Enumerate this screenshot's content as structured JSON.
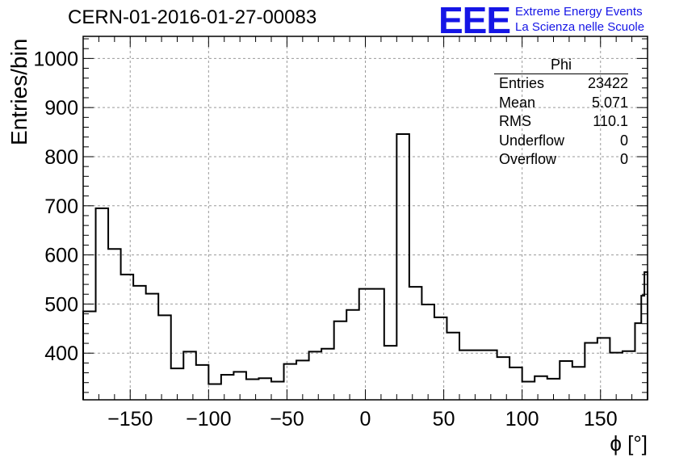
{
  "header": {
    "title": "CERN-01-2016-01-27-00083",
    "logo": "EEE",
    "logo_line1": "Extreme Energy Events",
    "logo_line2": "La Scienza nelle Scuole"
  },
  "stats_box": {
    "name": "Phi",
    "rows": [
      {
        "label": "Entries",
        "value": "23422"
      },
      {
        "label": "Mean",
        "value": "5.071"
      },
      {
        "label": "RMS",
        "value": "110.1"
      },
      {
        "label": "Underflow",
        "value": "0"
      },
      {
        "label": "Overflow",
        "value": "0"
      }
    ]
  },
  "chart_data": {
    "type": "histogram",
    "title": "CERN-01-2016-01-27-00083",
    "xlabel": "ϕ [°]",
    "ylabel": "Entries/bin",
    "xlim": [
      -180,
      180
    ],
    "ylim": [
      305,
      1045
    ],
    "bin_width": 8,
    "x_ticks": [
      -150,
      -100,
      -50,
      0,
      50,
      100,
      150
    ],
    "y_ticks": [
      400,
      500,
      600,
      700,
      800,
      900,
      1000
    ],
    "grid": true,
    "line_color": "#000000",
    "bins": [
      {
        "x0": -180,
        "x1": -172,
        "y": 485
      },
      {
        "x0": -172,
        "x1": -164,
        "y": 695
      },
      {
        "x0": -164,
        "x1": -156,
        "y": 612
      },
      {
        "x0": -156,
        "x1": -148,
        "y": 560
      },
      {
        "x0": -148,
        "x1": -140,
        "y": 537
      },
      {
        "x0": -140,
        "x1": -132,
        "y": 521
      },
      {
        "x0": -132,
        "x1": -124,
        "y": 477
      },
      {
        "x0": -124,
        "x1": -116,
        "y": 369
      },
      {
        "x0": -116,
        "x1": -108,
        "y": 403
      },
      {
        "x0": -108,
        "x1": -100,
        "y": 376
      },
      {
        "x0": -100,
        "x1": -92,
        "y": 337
      },
      {
        "x0": -92,
        "x1": -84,
        "y": 356
      },
      {
        "x0": -84,
        "x1": -76,
        "y": 362
      },
      {
        "x0": -76,
        "x1": -68,
        "y": 347
      },
      {
        "x0": -68,
        "x1": -60,
        "y": 349
      },
      {
        "x0": -60,
        "x1": -52,
        "y": 342
      },
      {
        "x0": -52,
        "x1": -44,
        "y": 378
      },
      {
        "x0": -44,
        "x1": -36,
        "y": 385
      },
      {
        "x0": -36,
        "x1": -28,
        "y": 403
      },
      {
        "x0": -28,
        "x1": -20,
        "y": 409
      },
      {
        "x0": -20,
        "x1": -12,
        "y": 465
      },
      {
        "x0": -12,
        "x1": -4,
        "y": 488
      },
      {
        "x0": -4,
        "x1": 4,
        "y": 531
      },
      {
        "x0": 4,
        "x1": 12,
        "y": 531
      },
      {
        "x0": 12,
        "x1": 20,
        "y": 415
      },
      {
        "x0": 20,
        "x1": 28,
        "y": 846
      },
      {
        "x0": 28,
        "x1": 36,
        "y": 535
      },
      {
        "x0": 36,
        "x1": 44,
        "y": 499
      },
      {
        "x0": 44,
        "x1": 52,
        "y": 473
      },
      {
        "x0": 52,
        "x1": 60,
        "y": 442
      },
      {
        "x0": 60,
        "x1": 68,
        "y": 406
      },
      {
        "x0": 68,
        "x1": 76,
        "y": 406
      },
      {
        "x0": 76,
        "x1": 84,
        "y": 406
      },
      {
        "x0": 84,
        "x1": 92,
        "y": 392
      },
      {
        "x0": 92,
        "x1": 100,
        "y": 371
      },
      {
        "x0": 100,
        "x1": 108,
        "y": 342
      },
      {
        "x0": 108,
        "x1": 116,
        "y": 353
      },
      {
        "x0": 116,
        "x1": 124,
        "y": 348
      },
      {
        "x0": 124,
        "x1": 132,
        "y": 384
      },
      {
        "x0": 132,
        "x1": 140,
        "y": 372
      },
      {
        "x0": 140,
        "x1": 148,
        "y": 421
      },
      {
        "x0": 148,
        "x1": 156,
        "y": 431
      },
      {
        "x0": 156,
        "x1": 164,
        "y": 401
      },
      {
        "x0": 164,
        "x1": 172,
        "y": 404
      },
      {
        "x0": 172,
        "x1": 176,
        "y": 461
      },
      {
        "x0": 176,
        "x1": 178,
        "y": 517
      },
      {
        "x0": 178,
        "x1": 180,
        "y": 565
      }
    ]
  }
}
